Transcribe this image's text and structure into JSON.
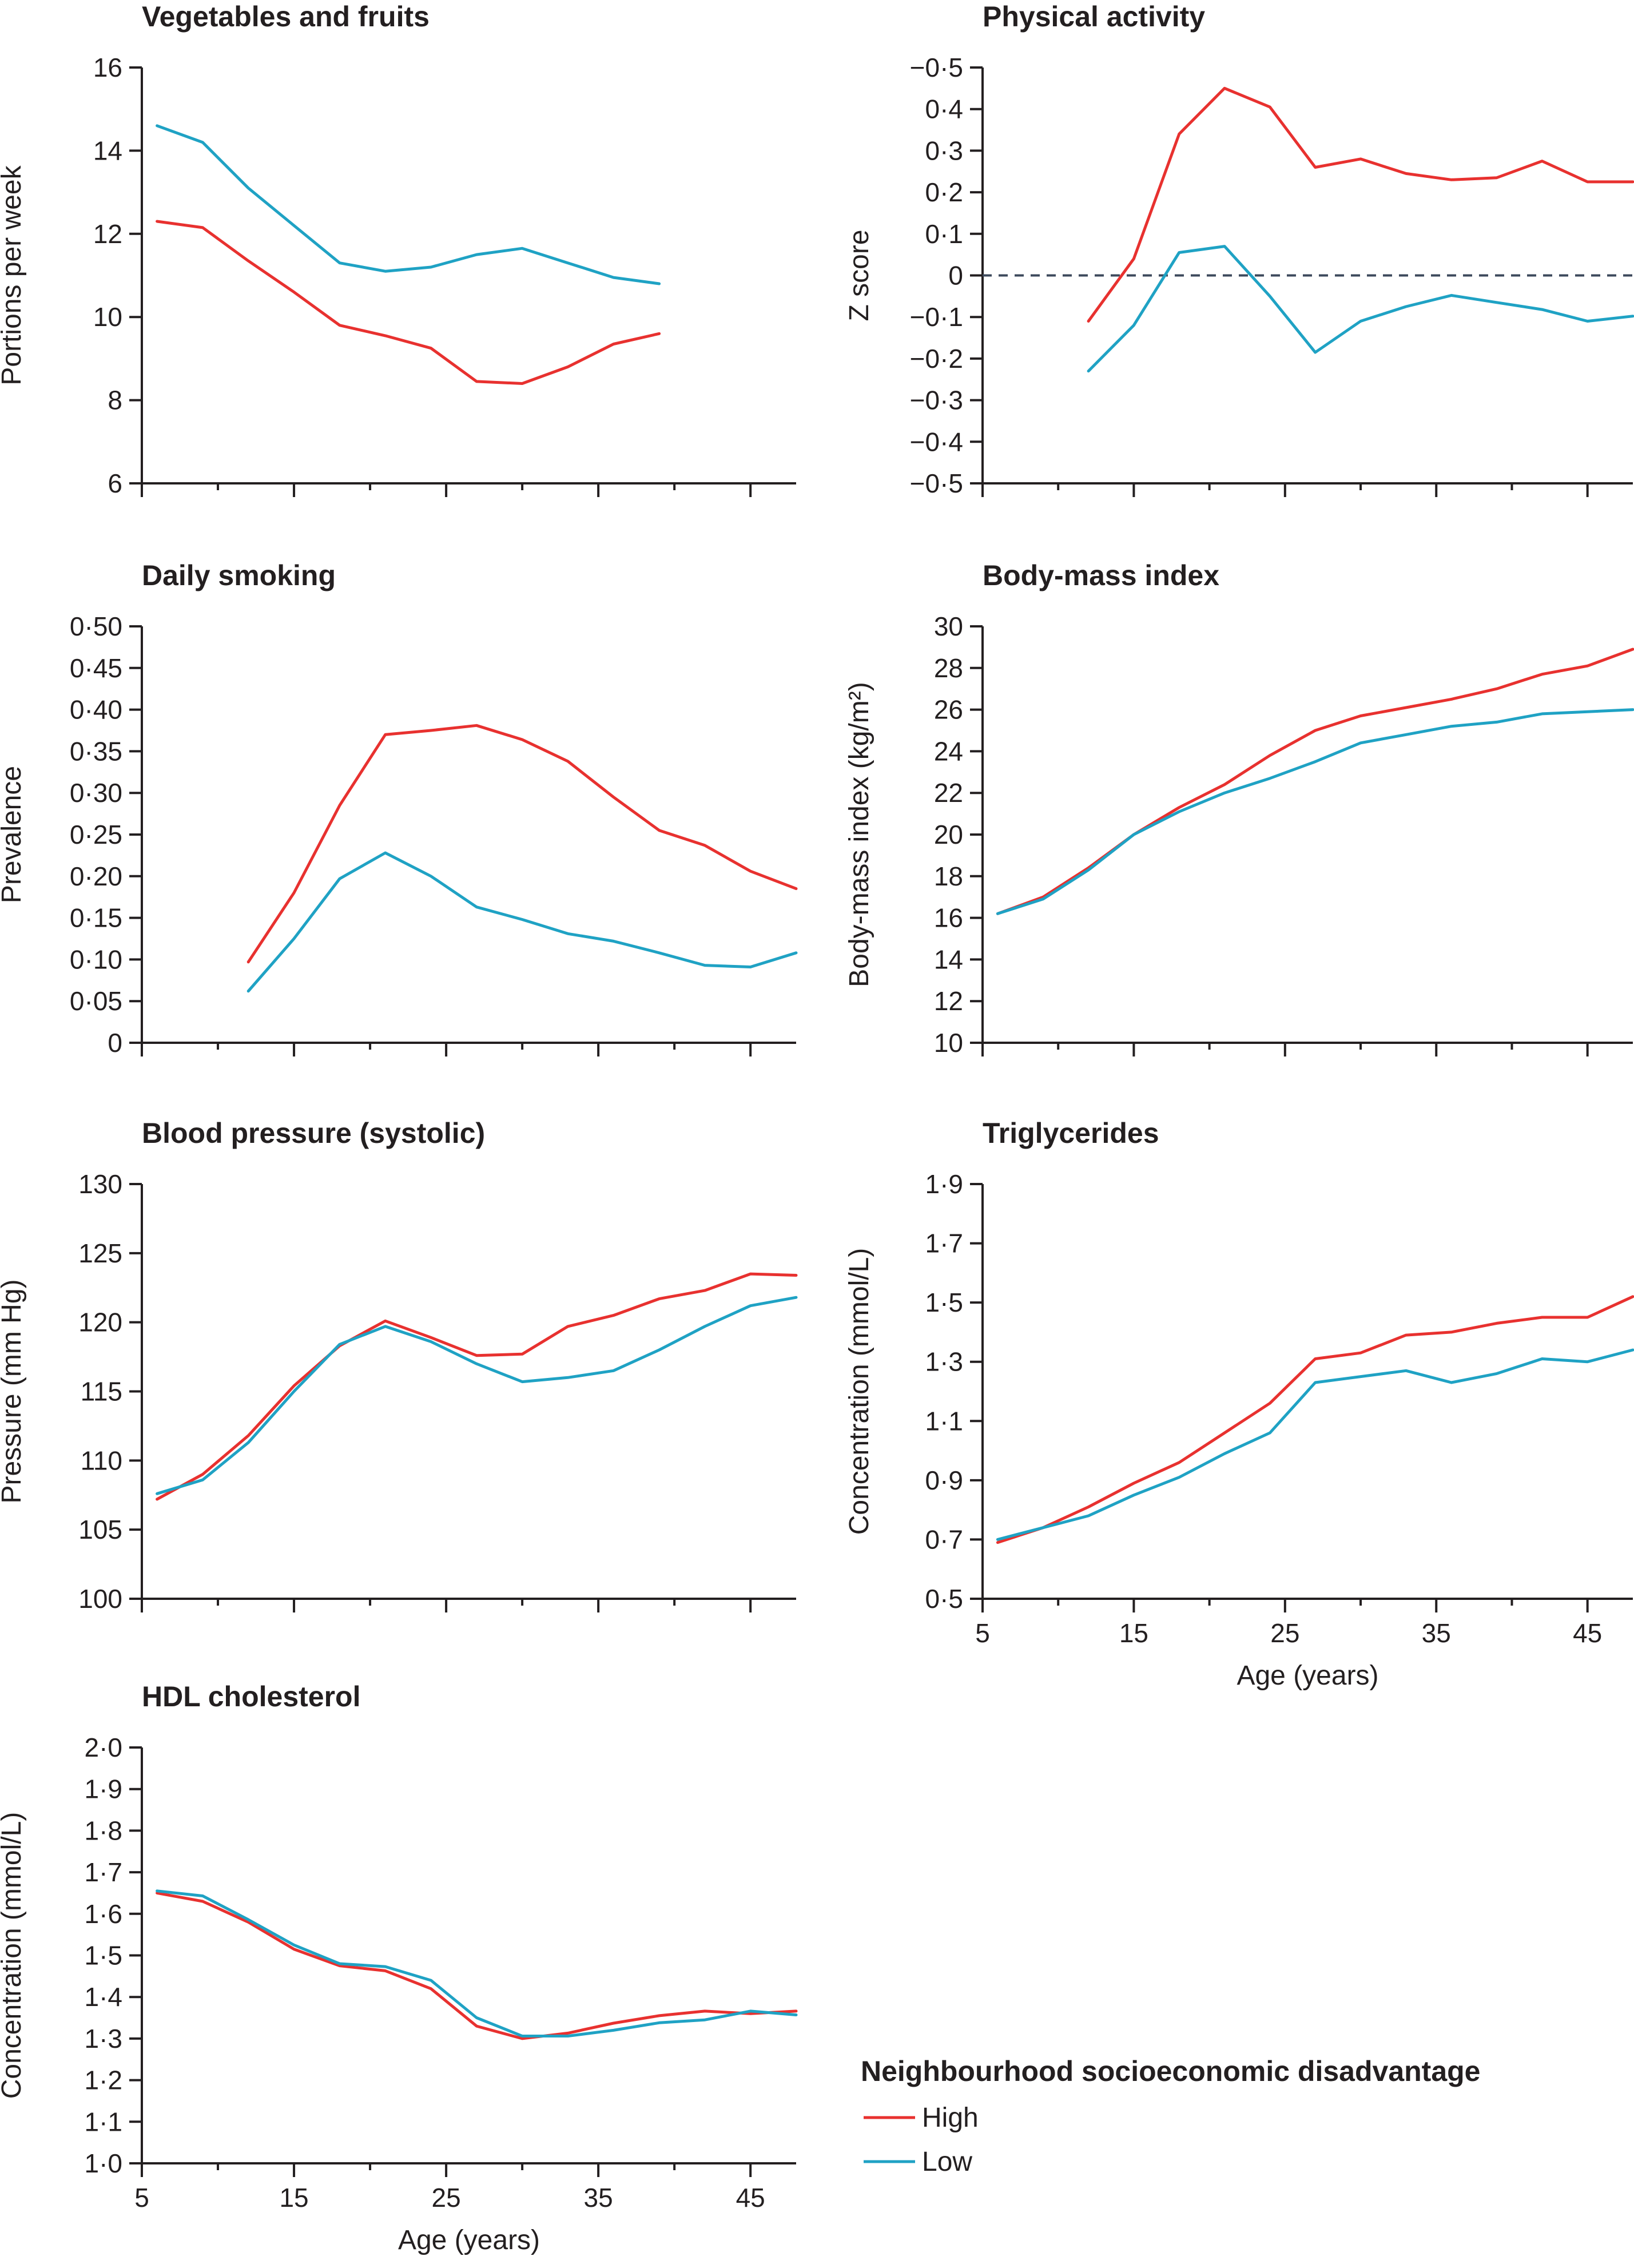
{
  "legend": {
    "title": "Neighbourhood socioeconomic disadvantage",
    "items": [
      {
        "label": "High",
        "color": "#e8312f"
      },
      {
        "label": "Low",
        "color": "#1fa2c4"
      }
    ]
  },
  "chart_data": [
    {
      "type": "line",
      "title": "Vegetables and fruits",
      "xlabel": "",
      "ylabel": "Portions per week",
      "xlim": [
        5,
        48
      ],
      "ylim": [
        6,
        16
      ],
      "yticks": [
        "6",
        "8",
        "10",
        "12",
        "14",
        "16"
      ],
      "xticks": [],
      "series": [
        {
          "name": "High",
          "x": [
            6,
            9,
            12,
            15,
            18,
            21,
            24,
            27,
            30,
            33,
            36,
            39
          ],
          "values": [
            12.3,
            12.15,
            11.35,
            10.6,
            9.8,
            9.55,
            9.25,
            8.45,
            8.4,
            8.8,
            9.35,
            9.6
          ]
        },
        {
          "name": "Low",
          "x": [
            6,
            9,
            12,
            15,
            18,
            21,
            24,
            27,
            30,
            33,
            36,
            39
          ],
          "values": [
            14.6,
            14.2,
            13.1,
            12.2,
            11.3,
            11.1,
            11.2,
            11.5,
            11.65,
            11.3,
            10.95,
            10.8
          ]
        }
      ]
    },
    {
      "type": "line",
      "title": "Physical activity",
      "xlabel": "",
      "ylabel": "Z score",
      "xlim": [
        5,
        48
      ],
      "ylim": [
        -0.5,
        0.5
      ],
      "inverted_y": true,
      "reference_line": 0,
      "yticks": [
        "−0·5",
        "0·4",
        "0·3",
        "0·2",
        "0·1",
        "0",
        "−0·1",
        "−0·2",
        "−0·3",
        "−0·4",
        "−0·5"
      ],
      "xticks": [],
      "series": [
        {
          "name": "High",
          "x": [
            12,
            15,
            18,
            21,
            24,
            27,
            30,
            33,
            36,
            39,
            42,
            45,
            48
          ],
          "values": [
            0.11,
            -0.04,
            -0.34,
            -0.45,
            -0.405,
            -0.26,
            -0.28,
            -0.245,
            -0.23,
            -0.235,
            -0.275,
            -0.225,
            -0.225
          ]
        },
        {
          "name": "Low",
          "x": [
            12,
            15,
            18,
            21,
            24,
            27,
            30,
            33,
            36,
            39,
            42,
            45,
            48
          ],
          "values": [
            0.23,
            0.12,
            -0.055,
            -0.07,
            0.05,
            0.185,
            0.11,
            0.075,
            0.048,
            0.065,
            0.082,
            0.11,
            0.098
          ]
        }
      ]
    },
    {
      "type": "line",
      "title": "Daily smoking",
      "xlabel": "",
      "ylabel": "Prevalence",
      "xlim": [
        5,
        48
      ],
      "ylim": [
        0,
        0.5
      ],
      "yticks": [
        "0",
        "0·05",
        "0·10",
        "0·15",
        "0·20",
        "0·25",
        "0·30",
        "0·35",
        "0·40",
        "0·45",
        "0·50"
      ],
      "xticks": [],
      "series": [
        {
          "name": "High",
          "x": [
            12,
            15,
            18,
            21,
            24,
            27,
            30,
            33,
            36,
            39,
            42,
            45,
            48
          ],
          "values": [
            0.097,
            0.18,
            0.285,
            0.37,
            0.375,
            0.381,
            0.364,
            0.338,
            0.295,
            0.255,
            0.237,
            0.206,
            0.185
          ]
        },
        {
          "name": "Low",
          "x": [
            12,
            15,
            18,
            21,
            24,
            27,
            30,
            33,
            36,
            39,
            42,
            45,
            48
          ],
          "values": [
            0.062,
            0.125,
            0.197,
            0.228,
            0.2,
            0.163,
            0.148,
            0.131,
            0.122,
            0.108,
            0.093,
            0.091,
            0.108
          ]
        }
      ]
    },
    {
      "type": "line",
      "title": "Body-mass index",
      "xlabel": "",
      "ylabel": "Body-mass index (kg/m²)",
      "xlim": [
        5,
        48
      ],
      "ylim": [
        10,
        30
      ],
      "yticks": [
        "10",
        "12",
        "14",
        "16",
        "18",
        "20",
        "22",
        "24",
        "26",
        "28",
        "30"
      ],
      "xticks": [],
      "series": [
        {
          "name": "High",
          "x": [
            6,
            9,
            12,
            15,
            18,
            21,
            24,
            27,
            30,
            33,
            36,
            39,
            42,
            45,
            48
          ],
          "values": [
            16.2,
            17.0,
            18.4,
            20.0,
            21.3,
            22.4,
            23.8,
            25.0,
            25.7,
            26.1,
            26.5,
            27.0,
            27.7,
            28.1,
            28.9
          ]
        },
        {
          "name": "Low",
          "x": [
            6,
            9,
            12,
            15,
            18,
            21,
            24,
            27,
            30,
            33,
            36,
            39,
            42,
            45,
            48
          ],
          "values": [
            16.2,
            16.9,
            18.3,
            20.0,
            21.1,
            22.0,
            22.7,
            23.5,
            24.4,
            24.8,
            25.2,
            25.4,
            25.8,
            25.9,
            26.0
          ]
        }
      ]
    },
    {
      "type": "line",
      "title": "Blood pressure (systolic)",
      "xlabel": "",
      "ylabel": "Pressure (mm Hg)",
      "xlim": [
        5,
        48
      ],
      "ylim": [
        100,
        130
      ],
      "yticks": [
        "100",
        "105",
        "110",
        "115",
        "120",
        "125",
        "130"
      ],
      "xticks": [],
      "series": [
        {
          "name": "High",
          "x": [
            6,
            9,
            12,
            15,
            18,
            21,
            24,
            27,
            30,
            33,
            36,
            39,
            42,
            45,
            48
          ],
          "values": [
            107.2,
            109.0,
            111.8,
            115.4,
            118.3,
            120.1,
            118.9,
            117.6,
            117.7,
            119.7,
            120.5,
            121.7,
            122.3,
            123.5,
            123.4
          ]
        },
        {
          "name": "Low",
          "x": [
            6,
            9,
            12,
            15,
            18,
            21,
            24,
            27,
            30,
            33,
            36,
            39,
            42,
            45,
            48
          ],
          "values": [
            107.6,
            108.6,
            111.3,
            115.0,
            118.4,
            119.7,
            118.6,
            117.0,
            115.7,
            116.0,
            116.5,
            118.0,
            119.7,
            121.2,
            121.8
          ]
        }
      ]
    },
    {
      "type": "line",
      "title": "Triglycerides",
      "xlabel": "Age (years)",
      "ylabel": "Concentration (mmol/L)",
      "xlim": [
        5,
        48
      ],
      "ylim": [
        0.5,
        1.9
      ],
      "yticks": [
        "0·5",
        "0·7",
        "0·9",
        "1·1",
        "1·3",
        "1·5",
        "1·7",
        "1·9"
      ],
      "xticks": [
        "5",
        "15",
        "25",
        "35",
        "45"
      ],
      "series": [
        {
          "name": "High",
          "x": [
            6,
            9,
            12,
            15,
            18,
            21,
            24,
            27,
            30,
            33,
            36,
            39,
            42,
            45,
            48
          ],
          "values": [
            0.69,
            0.74,
            0.81,
            0.89,
            0.96,
            1.06,
            1.16,
            1.31,
            1.33,
            1.39,
            1.4,
            1.43,
            1.45,
            1.45,
            1.52
          ]
        },
        {
          "name": "Low",
          "x": [
            6,
            9,
            12,
            15,
            18,
            21,
            24,
            27,
            30,
            33,
            36,
            39,
            42,
            45,
            48
          ],
          "values": [
            0.7,
            0.74,
            0.78,
            0.85,
            0.91,
            0.99,
            1.06,
            1.23,
            1.25,
            1.27,
            1.23,
            1.26,
            1.31,
            1.3,
            1.34
          ]
        }
      ]
    },
    {
      "type": "line",
      "title": "HDL cholesterol",
      "xlabel": "Age (years)",
      "ylabel": "Concentration (mmol/L)",
      "xlim": [
        5,
        48
      ],
      "ylim": [
        1.0,
        2.0
      ],
      "yticks": [
        "1·0",
        "1·1",
        "1·2",
        "1·3",
        "1·4",
        "1·5",
        "1·6",
        "1·7",
        "1·8",
        "1·9",
        "2·0"
      ],
      "xticks": [
        "5",
        "15",
        "25",
        "35",
        "45"
      ],
      "series": [
        {
          "name": "High",
          "x": [
            6,
            9,
            12,
            15,
            18,
            21,
            24,
            27,
            30,
            33,
            36,
            39,
            42,
            45,
            48
          ],
          "values": [
            1.65,
            1.63,
            1.58,
            1.515,
            1.475,
            1.463,
            1.42,
            1.33,
            1.3,
            1.313,
            1.337,
            1.355,
            1.366,
            1.36,
            1.366
          ]
        },
        {
          "name": "Low",
          "x": [
            6,
            9,
            12,
            15,
            18,
            21,
            24,
            27,
            30,
            33,
            36,
            39,
            42,
            45,
            48
          ],
          "values": [
            1.655,
            1.643,
            1.586,
            1.525,
            1.48,
            1.473,
            1.44,
            1.35,
            1.306,
            1.306,
            1.32,
            1.338,
            1.345,
            1.366,
            1.357
          ]
        }
      ]
    }
  ]
}
